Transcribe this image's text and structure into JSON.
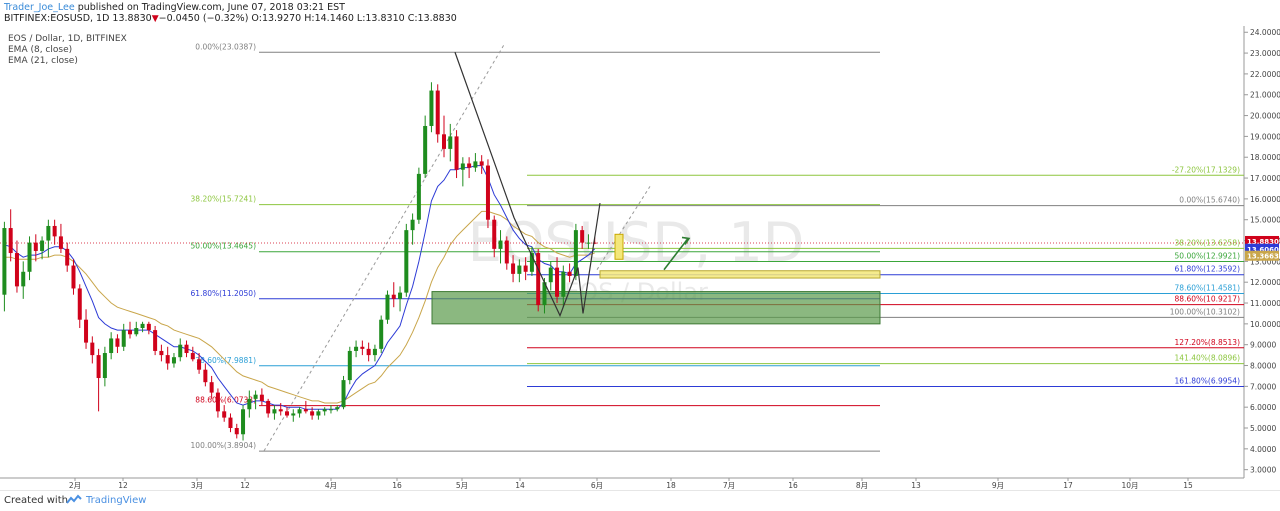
{
  "header": {
    "author": "Trader_Joe_Lee",
    "published_text": " published on TradingView.com, June 07, 2018 03:21 EST",
    "symbol_line_prefix": "BITFINEX:EOSUSD, 1D 13.8830",
    "down_arrow": "▼",
    "change_text": "−0.0450 (−0.32%) O:13.9270 H:14.1460 L:13.8310 C:13.8830"
  },
  "legend": {
    "instrument": "EOS / Dollar, 1D, BITFINEX",
    "ema8": "EMA (8, close)",
    "ema21": "EMA (21, close)"
  },
  "watermark": {
    "symbol": "EOSUSD, 1D",
    "name": "EOS / Dollar"
  },
  "footer": {
    "created_with": "Created with",
    "brand": "TradingView"
  },
  "colors": {
    "up": "#1e8c1e",
    "down": "#d0021b",
    "ema8": "#2d3bd6",
    "ema21": "#c9a64b",
    "price_tag": "#d0021b",
    "ema8_tag": "#2d3bd6",
    "ema21_tag": "#c9a64b"
  },
  "chart_data": {
    "type": "candlestick",
    "title": "EOS / Dollar, 1D, BITFINEX",
    "ylim": [
      2.6,
      24.3
    ],
    "y_ticks": [
      "3.0000",
      "4.0000",
      "5.0000",
      "6.0000",
      "7.0000",
      "8.0000",
      "9.0000",
      "10.0000",
      "11.0000",
      "12.0000",
      "13.0000",
      "14.0000",
      "15.0000",
      "16.0000",
      "17.0000",
      "18.0000",
      "19.0000",
      "20.0000",
      "21.0000",
      "22.0000",
      "23.0000",
      "24.0000"
    ],
    "x_ticks": [
      "2月",
      "12",
      "3月",
      "12",
      "4月",
      "16",
      "5月",
      "14",
      "6月",
      "18",
      "7月",
      "16",
      "8月",
      "13",
      "9月",
      "17",
      "10月",
      "15"
    ],
    "current_price": {
      "value": 13.883,
      "label": "13.8830"
    },
    "ema8_last": {
      "value": 13.606,
      "label": "13.6060"
    },
    "ema21_last": {
      "value": 13.3663,
      "label": "13.3663"
    },
    "fib_left": [
      {
        "label": "0.00%(23.0387)",
        "value": 23.0387,
        "color": "#808080"
      },
      {
        "label": "38.20%(15.7241)",
        "value": 15.7241,
        "color": "#8dc63f"
      },
      {
        "label": "50.00%(13.4645)",
        "value": 13.4645,
        "color": "#3aa63a"
      },
      {
        "label": "61.80%(11.2050)",
        "value": 11.205,
        "color": "#2d3bd6"
      },
      {
        "label": "78.60%(7.9881)",
        "value": 7.9881,
        "color": "#2a9fd6"
      },
      {
        "label": "88.60%(6.0733)",
        "value": 6.0733,
        "color": "#d0021b"
      },
      {
        "label": "100.00%(3.8904)",
        "value": 3.8904,
        "color": "#808080"
      }
    ],
    "fib_right": [
      {
        "label": "-27.20%(17.1329)",
        "value": 17.1329,
        "color": "#8dc63f"
      },
      {
        "label": "0.00%(15.6740)",
        "value": 15.674,
        "color": "#808080"
      },
      {
        "label": "38.20%(13.6258)",
        "value": 13.6258,
        "color": "#8dc63f"
      },
      {
        "label": "50.00%(12.9921)",
        "value": 12.9921,
        "color": "#3aa63a"
      },
      {
        "label": "61.80%(12.3592)",
        "value": 12.3592,
        "color": "#2d3bd6"
      },
      {
        "label": "78.60%(11.4581)",
        "value": 11.4581,
        "color": "#2a9fd6"
      },
      {
        "label": "88.60%(10.9217)",
        "value": 10.9217,
        "color": "#d0021b"
      },
      {
        "label": "100.00%(10.3102)",
        "value": 10.3102,
        "color": "#808080"
      },
      {
        "label": "127.20%(8.8513)",
        "value": 8.8513,
        "color": "#d0021b"
      },
      {
        "label": "141.40%(8.0896)",
        "value": 8.0896,
        "color": "#8dc63f"
      },
      {
        "label": "161.80%(6.9954)",
        "value": 6.9954,
        "color": "#2d3bd6"
      }
    ],
    "zones": [
      {
        "name": "support-zone",
        "y1": 11.55,
        "y2": 10.0,
        "color": "#5a9a4a"
      },
      {
        "name": "retest-zone",
        "y1": 12.55,
        "y2": 12.2,
        "color": "#f3e77a"
      }
    ],
    "candles": [
      [
        11.4,
        14.9,
        10.6,
        14.6
      ],
      [
        14.6,
        15.5,
        13.0,
        13.4
      ],
      [
        13.4,
        14.0,
        11.5,
        11.8
      ],
      [
        11.8,
        13.0,
        11.2,
        12.5
      ],
      [
        12.5,
        14.2,
        12.1,
        13.9
      ],
      [
        13.9,
        14.3,
        13.0,
        13.5
      ],
      [
        13.5,
        14.2,
        13.1,
        14.0
      ],
      [
        14.0,
        15.0,
        13.2,
        14.7
      ],
      [
        14.7,
        15.0,
        13.8,
        14.2
      ],
      [
        14.2,
        14.8,
        13.4,
        13.6
      ],
      [
        13.6,
        13.9,
        12.5,
        12.8
      ],
      [
        12.8,
        13.1,
        11.4,
        11.7
      ],
      [
        11.7,
        11.9,
        9.8,
        10.2
      ],
      [
        10.2,
        10.7,
        8.8,
        9.1
      ],
      [
        9.1,
        9.4,
        8.1,
        8.5
      ],
      [
        8.5,
        8.8,
        5.8,
        7.4
      ],
      [
        7.4,
        8.9,
        7.0,
        8.6
      ],
      [
        8.6,
        9.6,
        8.3,
        9.3
      ],
      [
        9.3,
        9.5,
        8.6,
        8.9
      ],
      [
        8.9,
        10.0,
        8.7,
        9.7
      ],
      [
        9.7,
        10.1,
        9.3,
        9.5
      ],
      [
        9.5,
        10.1,
        9.4,
        9.8
      ],
      [
        9.8,
        10.1,
        9.6,
        10.0
      ],
      [
        10.0,
        10.1,
        9.5,
        9.7
      ],
      [
        9.7,
        9.9,
        8.5,
        8.7
      ],
      [
        8.7,
        9.0,
        8.2,
        8.5
      ],
      [
        8.5,
        8.9,
        7.8,
        8.1
      ],
      [
        8.1,
        8.6,
        7.9,
        8.4
      ],
      [
        8.4,
        9.3,
        8.2,
        9.0
      ],
      [
        9.0,
        9.2,
        8.4,
        8.6
      ],
      [
        8.6,
        8.9,
        8.2,
        8.3
      ],
      [
        8.3,
        8.6,
        7.6,
        7.8
      ],
      [
        7.8,
        8.1,
        7.0,
        7.2
      ],
      [
        7.2,
        7.5,
        6.4,
        6.7
      ],
      [
        6.7,
        6.9,
        5.5,
        5.8
      ],
      [
        5.8,
        6.1,
        5.3,
        5.5
      ],
      [
        5.5,
        5.7,
        4.8,
        5.0
      ],
      [
        5.0,
        5.2,
        4.5,
        4.7
      ],
      [
        4.7,
        6.1,
        4.4,
        5.9
      ],
      [
        5.9,
        6.8,
        5.5,
        6.4
      ],
      [
        6.4,
        6.8,
        5.9,
        6.6
      ],
      [
        6.6,
        6.9,
        6.1,
        6.3
      ],
      [
        6.3,
        6.4,
        5.5,
        5.7
      ],
      [
        5.7,
        6.1,
        5.4,
        5.9
      ],
      [
        5.9,
        6.2,
        5.6,
        5.8
      ],
      [
        5.8,
        6.0,
        5.5,
        5.6
      ],
      [
        5.6,
        5.9,
        5.3,
        5.7
      ],
      [
        5.7,
        6.0,
        5.5,
        5.9
      ],
      [
        5.9,
        6.3,
        5.7,
        5.8
      ],
      [
        5.8,
        6.0,
        5.4,
        5.6
      ],
      [
        5.6,
        5.9,
        5.4,
        5.8
      ],
      [
        5.8,
        6.0,
        5.6,
        5.9
      ],
      [
        5.9,
        6.1,
        5.7,
        5.9
      ],
      [
        5.9,
        6.1,
        5.8,
        6.0
      ],
      [
        6.0,
        7.5,
        5.9,
        7.3
      ],
      [
        7.3,
        8.9,
        7.1,
        8.7
      ],
      [
        8.7,
        9.2,
        8.4,
        8.9
      ],
      [
        8.9,
        9.2,
        8.5,
        8.8
      ],
      [
        8.8,
        9.1,
        8.2,
        8.5
      ],
      [
        8.5,
        9.0,
        8.2,
        8.8
      ],
      [
        8.8,
        10.4,
        8.6,
        10.2
      ],
      [
        10.2,
        11.6,
        10.0,
        11.4
      ],
      [
        11.4,
        12.0,
        10.8,
        11.2
      ],
      [
        11.2,
        11.8,
        10.6,
        11.5
      ],
      [
        11.5,
        14.8,
        11.3,
        14.5
      ],
      [
        14.5,
        15.3,
        13.8,
        15.0
      ],
      [
        15.0,
        17.5,
        14.8,
        17.2
      ],
      [
        17.2,
        20.0,
        17.0,
        19.5
      ],
      [
        19.5,
        21.6,
        19.2,
        21.2
      ],
      [
        21.2,
        21.5,
        18.7,
        19.1
      ],
      [
        19.1,
        20.0,
        18.0,
        18.4
      ],
      [
        18.4,
        19.6,
        17.8,
        19.0
      ],
      [
        19.0,
        19.3,
        17.0,
        17.4
      ],
      [
        17.4,
        18.0,
        16.6,
        17.7
      ],
      [
        17.7,
        18.0,
        17.0,
        17.5
      ],
      [
        17.5,
        18.2,
        17.3,
        17.8
      ],
      [
        17.8,
        18.1,
        17.2,
        17.6
      ],
      [
        17.6,
        17.9,
        14.6,
        15.0
      ],
      [
        15.0,
        15.2,
        13.2,
        13.6
      ],
      [
        13.6,
        14.5,
        12.9,
        14.0
      ],
      [
        14.0,
        14.2,
        12.6,
        12.9
      ],
      [
        12.9,
        13.3,
        12.0,
        12.4
      ],
      [
        12.4,
        13.1,
        12.0,
        12.8
      ],
      [
        12.8,
        13.2,
        12.1,
        12.5
      ],
      [
        12.5,
        13.7,
        12.3,
        13.4
      ],
      [
        13.4,
        13.6,
        10.6,
        10.9
      ],
      [
        10.9,
        12.2,
        10.5,
        12.0
      ],
      [
        12.0,
        13.0,
        11.6,
        12.7
      ],
      [
        12.7,
        13.2,
        11.0,
        11.3
      ],
      [
        11.3,
        12.8,
        10.8,
        12.5
      ],
      [
        12.5,
        12.9,
        12.0,
        12.3
      ],
      [
        12.3,
        14.8,
        12.1,
        14.5
      ],
      [
        14.5,
        14.7,
        13.6,
        13.9
      ],
      [
        13.9,
        14.3,
        13.6,
        13.9
      ],
      [
        13.9,
        14.15,
        13.83,
        13.883
      ]
    ],
    "ema8": [
      13.8,
      13.7,
      13.4,
      13.2,
      13.3,
      13.3,
      13.4,
      13.6,
      13.7,
      13.7,
      13.5,
      13.1,
      12.5,
      11.8,
      11.1,
      10.3,
      10.0,
      9.8,
      9.7,
      9.7,
      9.7,
      9.7,
      9.7,
      9.7,
      9.5,
      9.3,
      9.1,
      8.9,
      8.9,
      8.8,
      8.7,
      8.5,
      8.2,
      7.9,
      7.4,
      7.0,
      6.6,
      6.2,
      6.1,
      6.2,
      6.3,
      6.3,
      6.2,
      6.1,
      6.1,
      6.0,
      6.0,
      6.0,
      5.9,
      5.9,
      5.9,
      5.9,
      5.9,
      5.9,
      6.2,
      6.8,
      7.3,
      7.6,
      7.8,
      8.0,
      8.5,
      9.1,
      9.5,
      9.9,
      10.9,
      11.8,
      13.0,
      14.4,
      15.9,
      16.6,
      16.9,
      17.4,
      17.4,
      17.5,
      17.5,
      17.6,
      17.6,
      17.0,
      16.2,
      15.7,
      15.1,
      14.5,
      14.1,
      13.8,
      13.7,
      13.1,
      12.9,
      12.8,
      12.5,
      12.5,
      12.4,
      12.9,
      13.1,
      13.3,
      13.6
    ],
    "ema21": [
      13.2,
      13.2,
      13.1,
      13.1,
      13.1,
      13.1,
      13.2,
      13.2,
      13.3,
      13.3,
      13.2,
      13.0,
      12.7,
      12.4,
      12.0,
      11.6,
      11.3,
      11.0,
      10.8,
      10.7,
      10.6,
      10.5,
      10.4,
      10.3,
      10.2,
      10.0,
      9.9,
      9.7,
      9.6,
      9.5,
      9.4,
      9.3,
      9.1,
      8.9,
      8.6,
      8.3,
      8.0,
      7.7,
      7.5,
      7.4,
      7.3,
      7.2,
      7.0,
      6.9,
      6.8,
      6.7,
      6.6,
      6.5,
      6.4,
      6.3,
      6.3,
      6.2,
      6.2,
      6.2,
      6.3,
      6.5,
      6.7,
      6.9,
      7.1,
      7.2,
      7.5,
      7.9,
      8.2,
      8.5,
      9.0,
      9.6,
      10.3,
      11.1,
      12.0,
      12.7,
      13.2,
      13.8,
      14.2,
      14.5,
      14.8,
      15.1,
      15.4,
      15.4,
      15.3,
      15.2,
      15.0,
      14.7,
      14.5,
      14.3,
      14.2,
      13.9,
      13.7,
      13.6,
      13.4,
      13.3,
      13.2,
      13.3,
      13.3,
      13.3,
      13.4
    ]
  }
}
